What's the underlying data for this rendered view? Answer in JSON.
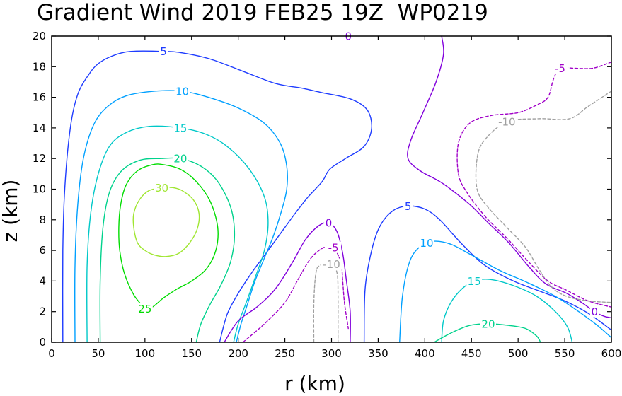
{
  "chart_data": {
    "type": "contour",
    "title": "Gradient Wind 2019 FEB25 19Z  WP0219",
    "xlabel": "r (km)",
    "ylabel": "z (km)",
    "xlim": [
      0,
      600
    ],
    "ylim": [
      0,
      20
    ],
    "xticks": [
      "0",
      "50",
      "100",
      "150",
      "200",
      "250",
      "300",
      "350",
      "400",
      "450",
      "500",
      "550",
      "600"
    ],
    "yticks": [
      "0",
      "2",
      "4",
      "6",
      "8",
      "10",
      "12",
      "14",
      "16",
      "18",
      "20"
    ],
    "colors": {
      "-10": "#a0a0a0",
      "-5": "#a000c8",
      "0": "#8200dc",
      "5": "#1e3cff",
      "10": "#00a0ff",
      "15": "#00c8c8",
      "20": "#00d28c",
      "25": "#00dc00",
      "30": "#a0e632"
    },
    "contours": [
      {
        "level": "5",
        "label": "5",
        "label_at": [
          120,
          19.0
        ],
        "dashed": false,
        "points": [
          [
            12,
            0
          ],
          [
            12,
            6
          ],
          [
            14,
            10
          ],
          [
            20,
            14
          ],
          [
            28,
            16.2
          ],
          [
            40,
            17.5
          ],
          [
            50,
            18.2
          ],
          [
            65,
            18.7
          ],
          [
            85,
            19.0
          ],
          [
            120,
            19.0
          ],
          [
            140,
            18.9
          ],
          [
            170,
            18.5
          ],
          [
            205,
            17.7
          ],
          [
            240,
            16.9
          ],
          [
            268,
            16.6
          ],
          [
            290,
            16.3
          ],
          [
            320,
            15.9
          ],
          [
            338,
            15.2
          ],
          [
            343,
            14.0
          ],
          [
            335,
            12.8
          ],
          [
            315,
            12.0
          ],
          [
            298,
            11.3
          ],
          [
            290,
            10.5
          ],
          [
            275,
            9.5
          ],
          [
            262,
            8.5
          ],
          [
            250,
            7.5
          ],
          [
            238,
            6.5
          ],
          [
            226,
            5.5
          ],
          [
            214,
            4.5
          ],
          [
            200,
            3.2
          ],
          [
            188,
            1.8
          ],
          [
            180,
            0
          ]
        ]
      },
      {
        "level": "5",
        "label": "5",
        "label_at": [
          382,
          8.9
        ],
        "dashed": false,
        "points": [
          [
            335,
            0
          ],
          [
            336,
            3.5
          ],
          [
            343,
            6.0
          ],
          [
            352,
            7.6
          ],
          [
            366,
            8.6
          ],
          [
            382,
            8.9
          ],
          [
            400,
            8.7
          ],
          [
            416,
            8.0
          ],
          [
            440,
            6.4
          ],
          [
            465,
            5.0
          ],
          [
            495,
            4.0
          ],
          [
            525,
            3.3
          ],
          [
            550,
            2.7
          ],
          [
            575,
            1.9
          ],
          [
            600,
            0.8
          ]
        ]
      },
      {
        "level": "10",
        "label": "10",
        "label_at": [
          140,
          16.4
        ],
        "dashed": false,
        "points": [
          [
            25,
            0
          ],
          [
            25,
            5
          ],
          [
            28,
            9
          ],
          [
            34,
            12
          ],
          [
            45,
            14.2
          ],
          [
            60,
            15.4
          ],
          [
            80,
            16.1
          ],
          [
            110,
            16.4
          ],
          [
            140,
            16.4
          ],
          [
            168,
            16.0
          ],
          [
            200,
            15.3
          ],
          [
            228,
            14.3
          ],
          [
            245,
            13.0
          ],
          [
            252,
            11.5
          ],
          [
            252,
            10.0
          ],
          [
            246,
            8.5
          ],
          [
            238,
            7.0
          ],
          [
            228,
            5.5
          ],
          [
            218,
            4.0
          ],
          [
            210,
            2.5
          ],
          [
            203,
            1.2
          ],
          [
            198,
            0
          ]
        ]
      },
      {
        "level": "10",
        "label": "10",
        "label_at": [
          402,
          6.5
        ],
        "dashed": false,
        "points": [
          [
            373,
            0
          ],
          [
            376,
            3.0
          ],
          [
            384,
            5.3
          ],
          [
            396,
            6.3
          ],
          [
            410,
            6.6
          ],
          [
            428,
            6.4
          ],
          [
            450,
            5.7
          ],
          [
            480,
            4.7
          ],
          [
            510,
            3.9
          ],
          [
            540,
            3.0
          ],
          [
            565,
            2.0
          ],
          [
            585,
            1.1
          ],
          [
            600,
            0.3
          ]
        ]
      },
      {
        "level": "15",
        "label": "15",
        "label_at": [
          138,
          14.0
        ],
        "dashed": false,
        "points": [
          [
            38,
            0
          ],
          [
            38,
            5
          ],
          [
            42,
            8.5
          ],
          [
            50,
            11
          ],
          [
            62,
            12.8
          ],
          [
            80,
            13.7
          ],
          [
            105,
            14.1
          ],
          [
            138,
            14.0
          ],
          [
            165,
            13.6
          ],
          [
            188,
            12.8
          ],
          [
            212,
            11.3
          ],
          [
            228,
            9.5
          ],
          [
            232,
            7.8
          ],
          [
            228,
            6.0
          ],
          [
            218,
            4.2
          ],
          [
            208,
            2.5
          ],
          [
            200,
            1.2
          ],
          [
            195,
            0
          ]
        ]
      },
      {
        "level": "15",
        "label": "15",
        "label_at": [
          453,
          4.0
        ],
        "dashed": false,
        "points": [
          [
            418,
            0
          ],
          [
            420,
            1.4
          ],
          [
            428,
            2.6
          ],
          [
            440,
            3.5
          ],
          [
            453,
            4.0
          ],
          [
            470,
            4.1
          ],
          [
            495,
            3.7
          ],
          [
            520,
            3.0
          ],
          [
            540,
            2.0
          ],
          [
            553,
            1.0
          ],
          [
            558,
            0
          ]
        ]
      },
      {
        "level": "20",
        "label": "20",
        "label_at": [
          138,
          12.0
        ],
        "dashed": false,
        "points": [
          [
            52,
            0
          ],
          [
            52,
            4
          ],
          [
            55,
            7.5
          ],
          [
            62,
            9.8
          ],
          [
            75,
            11.2
          ],
          [
            95,
            11.9
          ],
          [
            118,
            12.0
          ],
          [
            138,
            12.0
          ],
          [
            160,
            11.5
          ],
          [
            178,
            10.5
          ],
          [
            192,
            8.8
          ],
          [
            196,
            7.0
          ],
          [
            192,
            5.3
          ],
          [
            182,
            3.8
          ],
          [
            170,
            2.5
          ],
          [
            160,
            1.2
          ],
          [
            155,
            0
          ]
        ]
      },
      {
        "level": "20",
        "label": "20",
        "label_at": [
          468,
          1.2
        ],
        "dashed": false,
        "points": [
          [
            410,
            0
          ],
          [
            428,
            0.6
          ],
          [
            448,
            1.1
          ],
          [
            468,
            1.2
          ],
          [
            490,
            1.1
          ],
          [
            508,
            0.9
          ],
          [
            520,
            0.4
          ],
          [
            524,
            0
          ]
        ]
      },
      {
        "level": "25",
        "label": "25",
        "label_at": [
          100,
          2.2
        ],
        "dashed": false,
        "points": [
          [
            100,
            2.2
          ],
          [
            88,
            3.1
          ],
          [
            78,
            4.5
          ],
          [
            73,
            6.0
          ],
          [
            72,
            7.5
          ],
          [
            74,
            9.0
          ],
          [
            80,
            10.3
          ],
          [
            92,
            11.2
          ],
          [
            108,
            11.6
          ],
          [
            120,
            11.6
          ],
          [
            138,
            11.3
          ],
          [
            155,
            10.5
          ],
          [
            170,
            9.2
          ],
          [
            178,
            7.5
          ],
          [
            176,
            6.0
          ],
          [
            166,
            4.8
          ],
          [
            150,
            4.0
          ],
          [
            135,
            3.5
          ],
          [
            120,
            2.9
          ],
          [
            108,
            2.3
          ],
          [
            100,
            2.2
          ]
        ]
      },
      {
        "level": "30",
        "label": "30",
        "label_at": [
          118,
          10.1
        ],
        "dashed": false,
        "points": [
          [
            118,
            10.1
          ],
          [
            104,
            9.9
          ],
          [
            94,
            9.3
          ],
          [
            88,
            8.4
          ],
          [
            88,
            7.5
          ],
          [
            92,
            6.5
          ],
          [
            100,
            6.0
          ],
          [
            110,
            5.7
          ],
          [
            122,
            5.6
          ],
          [
            136,
            5.8
          ],
          [
            148,
            6.5
          ],
          [
            156,
            7.4
          ],
          [
            158,
            8.4
          ],
          [
            152,
            9.3
          ],
          [
            140,
            9.9
          ],
          [
            130,
            10.1
          ],
          [
            118,
            10.1
          ]
        ]
      },
      {
        "level": "0",
        "label": "0",
        "label_at": [
          318,
          20.0
        ],
        "dashed": false,
        "points": [
          [
            318,
            19.8
          ],
          [
            322,
            20.0
          ]
        ]
      },
      {
        "level": "0",
        "label": "0",
        "label_at": [
          297,
          7.8
        ],
        "dashed": false,
        "points": [
          [
            185,
            0
          ],
          [
            200,
            1.4
          ],
          [
            220,
            2.3
          ],
          [
            240,
            3.5
          ],
          [
            258,
            5.2
          ],
          [
            272,
            6.7
          ],
          [
            286,
            7.6
          ],
          [
            297,
            7.8
          ],
          [
            306,
            7.2
          ],
          [
            312,
            5.8
          ],
          [
            316,
            4.0
          ],
          [
            320,
            2.0
          ],
          [
            320,
            0
          ]
        ]
      },
      {
        "level": "0",
        "label": "0",
        "label_at": [
          582,
          2.0
        ],
        "dashed": false,
        "points": [
          [
            418,
            20
          ],
          [
            420,
            18.8
          ],
          [
            412,
            17.0
          ],
          [
            398,
            15.0
          ],
          [
            385,
            13.2
          ],
          [
            382,
            12.0
          ],
          [
            395,
            11.2
          ],
          [
            416,
            10.5
          ],
          [
            432,
            9.8
          ],
          [
            450,
            8.9
          ],
          [
            468,
            7.8
          ],
          [
            490,
            6.5
          ],
          [
            512,
            4.9
          ],
          [
            530,
            3.8
          ],
          [
            552,
            3.2
          ],
          [
            568,
            2.6
          ],
          [
            582,
            2.0
          ],
          [
            592,
            1.7
          ],
          [
            600,
            1.6
          ]
        ]
      },
      {
        "level": "-5",
        "label": "-5",
        "label_at": [
          302,
          6.2
        ],
        "dashed": true,
        "points": [
          [
            205,
            0
          ],
          [
            228,
            1.2
          ],
          [
            250,
            2.6
          ],
          [
            265,
            4.2
          ],
          [
            278,
            5.5
          ],
          [
            292,
            6.2
          ],
          [
            302,
            6.2
          ],
          [
            310,
            5.2
          ],
          [
            312,
            4.0
          ],
          [
            314,
            2.5
          ],
          [
            318,
            0.9
          ]
        ]
      },
      {
        "level": "-5",
        "label": "-5",
        "label_at": [
          545,
          17.9
        ],
        "dashed": true,
        "points": [
          [
            600,
            18.3
          ],
          [
            580,
            17.9
          ],
          [
            560,
            17.9
          ],
          [
            545,
            17.9
          ],
          [
            538,
            17.2
          ],
          [
            532,
            16.0
          ],
          [
            520,
            15.5
          ],
          [
            500,
            15.0
          ],
          [
            470,
            14.8
          ],
          [
            448,
            14.3
          ],
          [
            436,
            13.0
          ],
          [
            436,
            11.0
          ],
          [
            445,
            9.8
          ],
          [
            465,
            8.2
          ],
          [
            488,
            6.8
          ],
          [
            512,
            5.2
          ],
          [
            532,
            4.0
          ],
          [
            552,
            3.4
          ],
          [
            575,
            2.7
          ],
          [
            600,
            2.3
          ]
        ]
      },
      {
        "level": "-10",
        "label": "-10",
        "label_at": [
          300,
          5.1
        ],
        "dashed": true,
        "points": [
          [
            281,
            0
          ],
          [
            281,
            2.5
          ],
          [
            283,
            4.4
          ],
          [
            287,
            5.0
          ],
          [
            300,
            5.1
          ],
          [
            306,
            4.5
          ],
          [
            307,
            3.0
          ],
          [
            307,
            1.2
          ],
          [
            307,
            0
          ]
        ]
      },
      {
        "level": "-10",
        "label": "-10",
        "label_at": [
          488,
          14.4
        ],
        "dashed": true,
        "points": [
          [
            600,
            16.4
          ],
          [
            575,
            15.4
          ],
          [
            555,
            14.6
          ],
          [
            522,
            14.6
          ],
          [
            488,
            14.4
          ],
          [
            464,
            13.2
          ],
          [
            456,
            12.0
          ],
          [
            456,
            10.0
          ],
          [
            468,
            8.8
          ],
          [
            488,
            7.5
          ],
          [
            508,
            6.2
          ],
          [
            522,
            4.8
          ],
          [
            536,
            3.6
          ],
          [
            552,
            3.0
          ],
          [
            575,
            2.7
          ],
          [
            600,
            2.6
          ]
        ]
      }
    ]
  }
}
